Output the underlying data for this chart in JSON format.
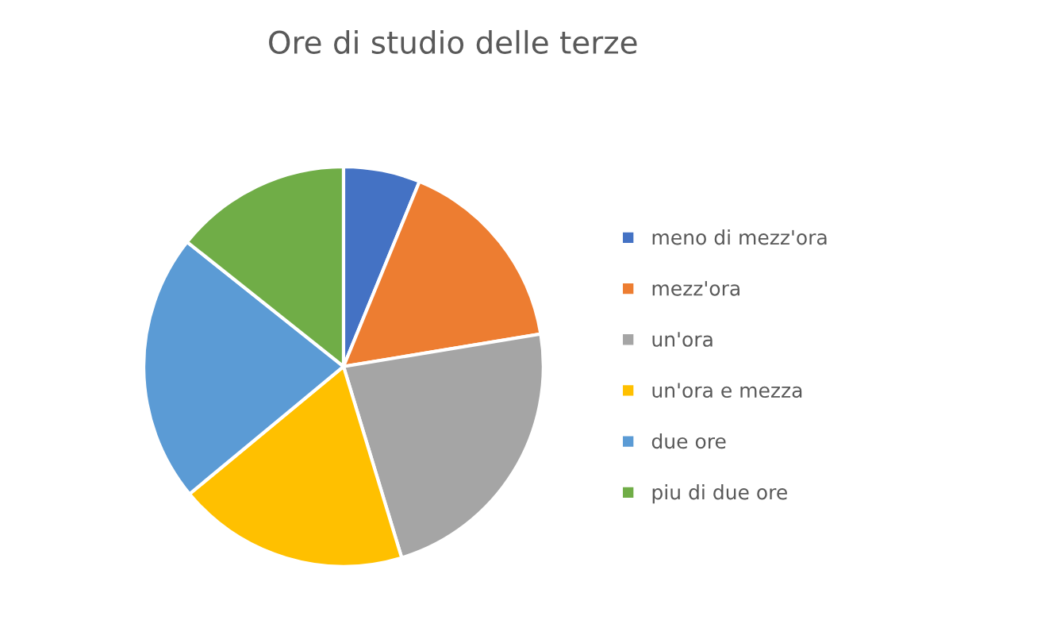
{
  "chart_data": {
    "type": "pie",
    "title": "Ore di studio delle terze",
    "categories": [
      "meno di mezz'ora",
      "mezz'ora",
      "un'ora",
      "un'ora e mezza",
      "due ore",
      "piu di due ore"
    ],
    "values": [
      6.2,
      16.2,
      22.9,
      18.7,
      21.7,
      14.3
    ],
    "colors": [
      "#4472c4",
      "#ed7d31",
      "#a5a5a5",
      "#ffc000",
      "#5b9bd5",
      "#70ad47"
    ],
    "legend": "right"
  }
}
